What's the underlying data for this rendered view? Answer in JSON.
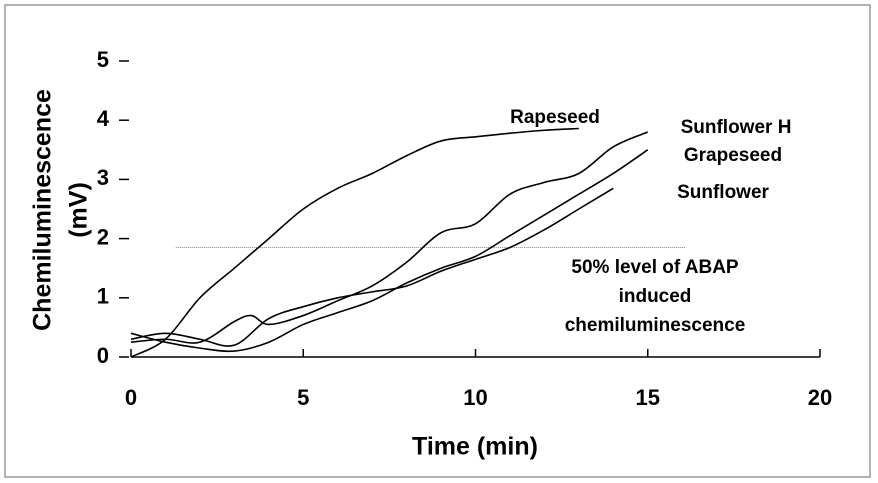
{
  "chart_data": {
    "type": "line",
    "x_label": "Time (min)",
    "y_label": [
      "Chemiluminescence",
      "(mV)"
    ],
    "xlim": [
      0,
      20
    ],
    "xticks": [
      0,
      5,
      10,
      15,
      20
    ],
    "ylim": [
      0,
      5
    ],
    "yticks": [
      0,
      1,
      2,
      3,
      4,
      5
    ],
    "series": [
      {
        "name": "Rapeseed",
        "color": "#000000",
        "x": [
          0,
          1,
          2,
          3,
          4,
          5,
          6,
          7,
          8,
          9,
          10,
          11,
          12,
          13
        ],
        "values": [
          0,
          0.3,
          1.0,
          1.5,
          2.0,
          2.5,
          2.85,
          3.1,
          3.4,
          3.65,
          3.72,
          3.78,
          3.83,
          3.86
        ]
      },
      {
        "name": "Sunflower H",
        "color": "#000000",
        "x": [
          0,
          1,
          2,
          3,
          3.5,
          4,
          5,
          6,
          7,
          8,
          9,
          10,
          11,
          12,
          13,
          14,
          15
        ],
        "values": [
          0.25,
          0.3,
          0.25,
          0.6,
          0.7,
          0.55,
          0.7,
          0.95,
          1.2,
          1.6,
          2.1,
          2.25,
          2.75,
          2.95,
          3.1,
          3.55,
          3.8
        ]
      },
      {
        "name": "Grapeseed",
        "color": "#000000",
        "x": [
          0,
          1,
          2,
          3,
          4,
          5,
          6,
          7,
          8,
          9,
          10,
          11,
          12,
          13,
          14,
          15
        ],
        "values": [
          0.4,
          0.25,
          0.15,
          0.1,
          0.25,
          0.55,
          0.75,
          0.95,
          1.25,
          1.5,
          1.7,
          2.05,
          2.4,
          2.75,
          3.1,
          3.5
        ]
      },
      {
        "name": "Sunflower",
        "color": "#000000",
        "x": [
          0,
          1,
          2,
          3,
          4,
          5,
          6,
          7,
          8,
          9,
          10,
          11,
          12,
          13,
          14
        ],
        "values": [
          0.3,
          0.4,
          0.3,
          0.2,
          0.65,
          0.85,
          1.0,
          1.1,
          1.2,
          1.45,
          1.65,
          1.85,
          2.15,
          2.5,
          2.85
        ]
      }
    ],
    "reference_line": {
      "value": 1.85,
      "x": [
        1.3,
        16.1
      ],
      "color": "#888888",
      "label": [
        "50% level of ABAP",
        "induced",
        "chemiluminescence"
      ]
    }
  }
}
